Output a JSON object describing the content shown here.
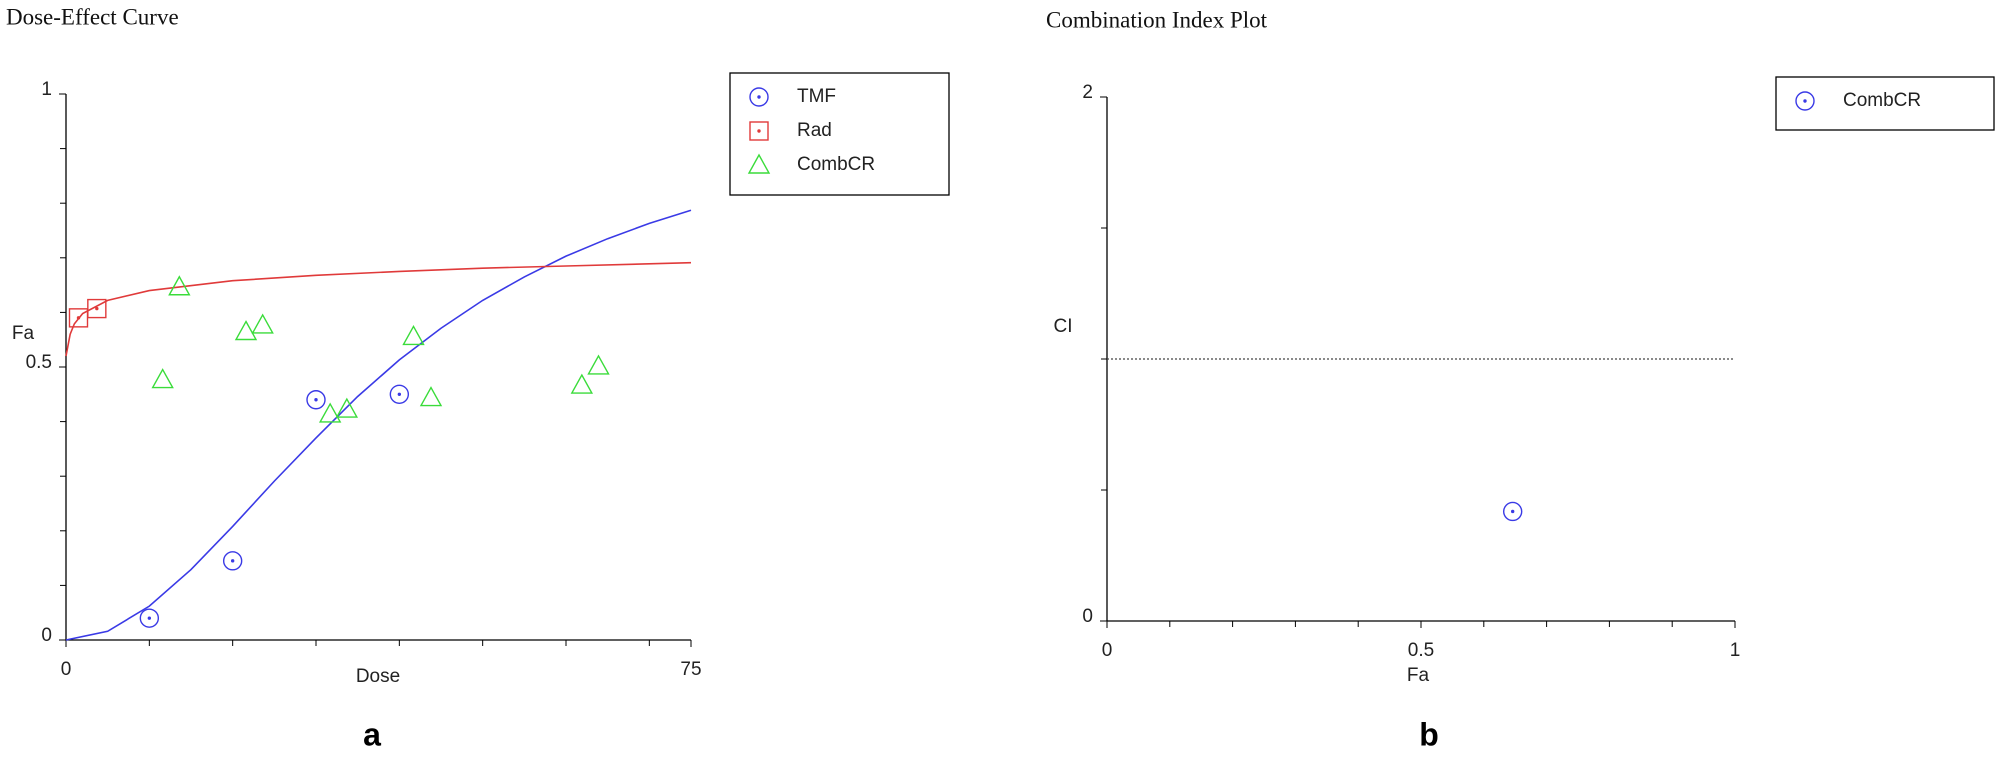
{
  "chart_data": [
    {
      "type": "scatter",
      "title": "Dose-Effect Curve",
      "x_label": "Dose",
      "y_label": "Fa",
      "panel_label": "a",
      "xlim": [
        0,
        75
      ],
      "ylim": [
        0,
        1
      ],
      "xticks": [
        0,
        75
      ],
      "yticks": [
        0,
        0.5,
        1
      ],
      "minor_xticks": [
        10,
        20,
        30,
        40,
        50,
        60,
        70
      ],
      "minor_yticks": [
        0.1,
        0.2,
        0.3,
        0.4,
        0.6,
        0.7,
        0.8,
        0.9
      ],
      "grid": false,
      "legend": "upper right outside",
      "series": [
        {
          "name": "TMF",
          "color": "#3a3ae6",
          "marker": "circle",
          "x": [
            10,
            20,
            30,
            40
          ],
          "values": [
            0.04,
            0.145,
            0.44,
            0.45
          ]
        },
        {
          "name": "Rad",
          "color": "#e03a3a",
          "marker": "square",
          "x": [
            1.5,
            3.7
          ],
          "values": [
            0.59,
            0.607
          ]
        },
        {
          "name": "CombCR",
          "color": "#3adc3a",
          "marker": "triangle",
          "x": [
            11.6,
            13.6,
            21.6,
            23.6,
            31.7,
            33.7,
            41.7,
            43.8,
            61.9,
            63.9
          ],
          "values": [
            0.477,
            0.647,
            0.565,
            0.577,
            0.414,
            0.423,
            0.556,
            0.444,
            0.467,
            0.502
          ]
        }
      ],
      "curves": [
        {
          "color": "#3a3ae6",
          "x": [
            0,
            5,
            10,
            15,
            20,
            25,
            30,
            35,
            40,
            45,
            50,
            55,
            60,
            65,
            70,
            75
          ],
          "values": [
            0,
            0.016,
            0.062,
            0.129,
            0.208,
            0.291,
            0.37,
            0.446,
            0.513,
            0.571,
            0.622,
            0.665,
            0.703,
            0.735,
            0.763,
            0.787
          ]
        },
        {
          "color": "#e03a3a",
          "x": [
            0,
            0.5,
            1,
            2,
            5,
            10,
            20,
            30,
            40,
            50,
            60,
            75
          ],
          "values": [
            0.52,
            0.56,
            0.579,
            0.598,
            0.622,
            0.64,
            0.658,
            0.668,
            0.675,
            0.681,
            0.685,
            0.691
          ]
        }
      ]
    },
    {
      "type": "scatter",
      "title": "Combination Index Plot",
      "x_label": "Fa",
      "y_label": "CI",
      "panel_label": "b",
      "xlim": [
        0,
        1
      ],
      "ylim": [
        0,
        2
      ],
      "xticks": [
        0,
        0.5,
        1
      ],
      "yticks": [
        0,
        2
      ],
      "minor_xticks": [
        0.1,
        0.2,
        0.3,
        0.4,
        0.6,
        0.7,
        0.8,
        0.9
      ],
      "minor_yticks": [
        0.5,
        1,
        1.5
      ],
      "grid": false,
      "legend": "upper right outside",
      "reference_line": 1,
      "series": [
        {
          "name": "CombCR",
          "color": "#3a3ae6",
          "marker": "circle",
          "x": [
            0.646
          ],
          "values": [
            0.418
          ]
        }
      ]
    }
  ]
}
